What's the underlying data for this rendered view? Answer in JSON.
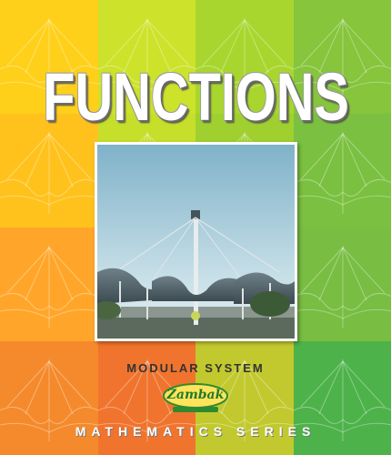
{
  "cover": {
    "title": "FUNCTIONS",
    "subtitle": "MODULAR SYSTEM",
    "publisher": "Zambak",
    "series": "MATHEMATICS SERIES"
  },
  "colors": {
    "tiles": [
      [
        "#ffd01a",
        "#cde22a",
        "#a8d62e",
        "#86c53c"
      ],
      [
        "#ffc21d",
        "#c6df2b",
        "#9fd030",
        "#7bc041"
      ],
      [
        "#ffa62a",
        "#e89a2f",
        "#b6d12f",
        "#79bd43"
      ],
      [
        "#f58a2c",
        "#f0742d",
        "#c2c92e",
        "#4db24a"
      ]
    ],
    "title_fill": "#ffffff",
    "sky": "#9ec6d8",
    "logo_text": "#1f7a2a"
  },
  "icons": {
    "logo": "zambak-logo",
    "tile_art": "tensile-canopy-structure"
  }
}
